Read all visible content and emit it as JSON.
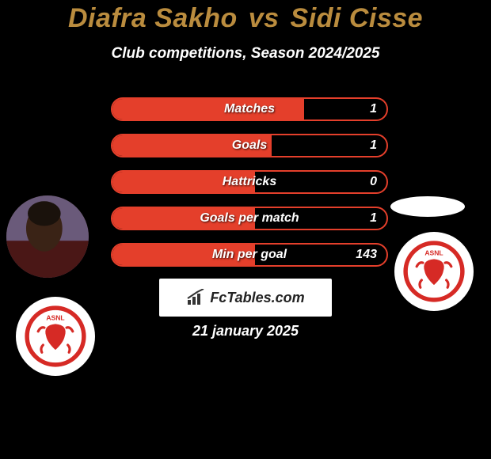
{
  "title_color": "#ba8c3e",
  "player_a": "Diafra Sakho",
  "vs_text": "vs",
  "player_b": "Sidi Cisse",
  "subtitle": "Club competitions, Season 2024/2025",
  "pill_border_color": "#e43f2b",
  "pill_fill_color": "#e43f2b",
  "stats": [
    {
      "label": "Matches",
      "value": "1",
      "fill_pct": 70
    },
    {
      "label": "Goals",
      "value": "1",
      "fill_pct": 58
    },
    {
      "label": "Hattricks",
      "value": "0",
      "fill_pct": 52
    },
    {
      "label": "Goals per match",
      "value": "1",
      "fill_pct": 52
    },
    {
      "label": "Min per goal",
      "value": "143",
      "fill_pct": 52
    }
  ],
  "badge_primary": "#d62a25",
  "brand_text": "FcTables.com",
  "brand_icon_color": "#333333",
  "date_text": "21 january 2025"
}
